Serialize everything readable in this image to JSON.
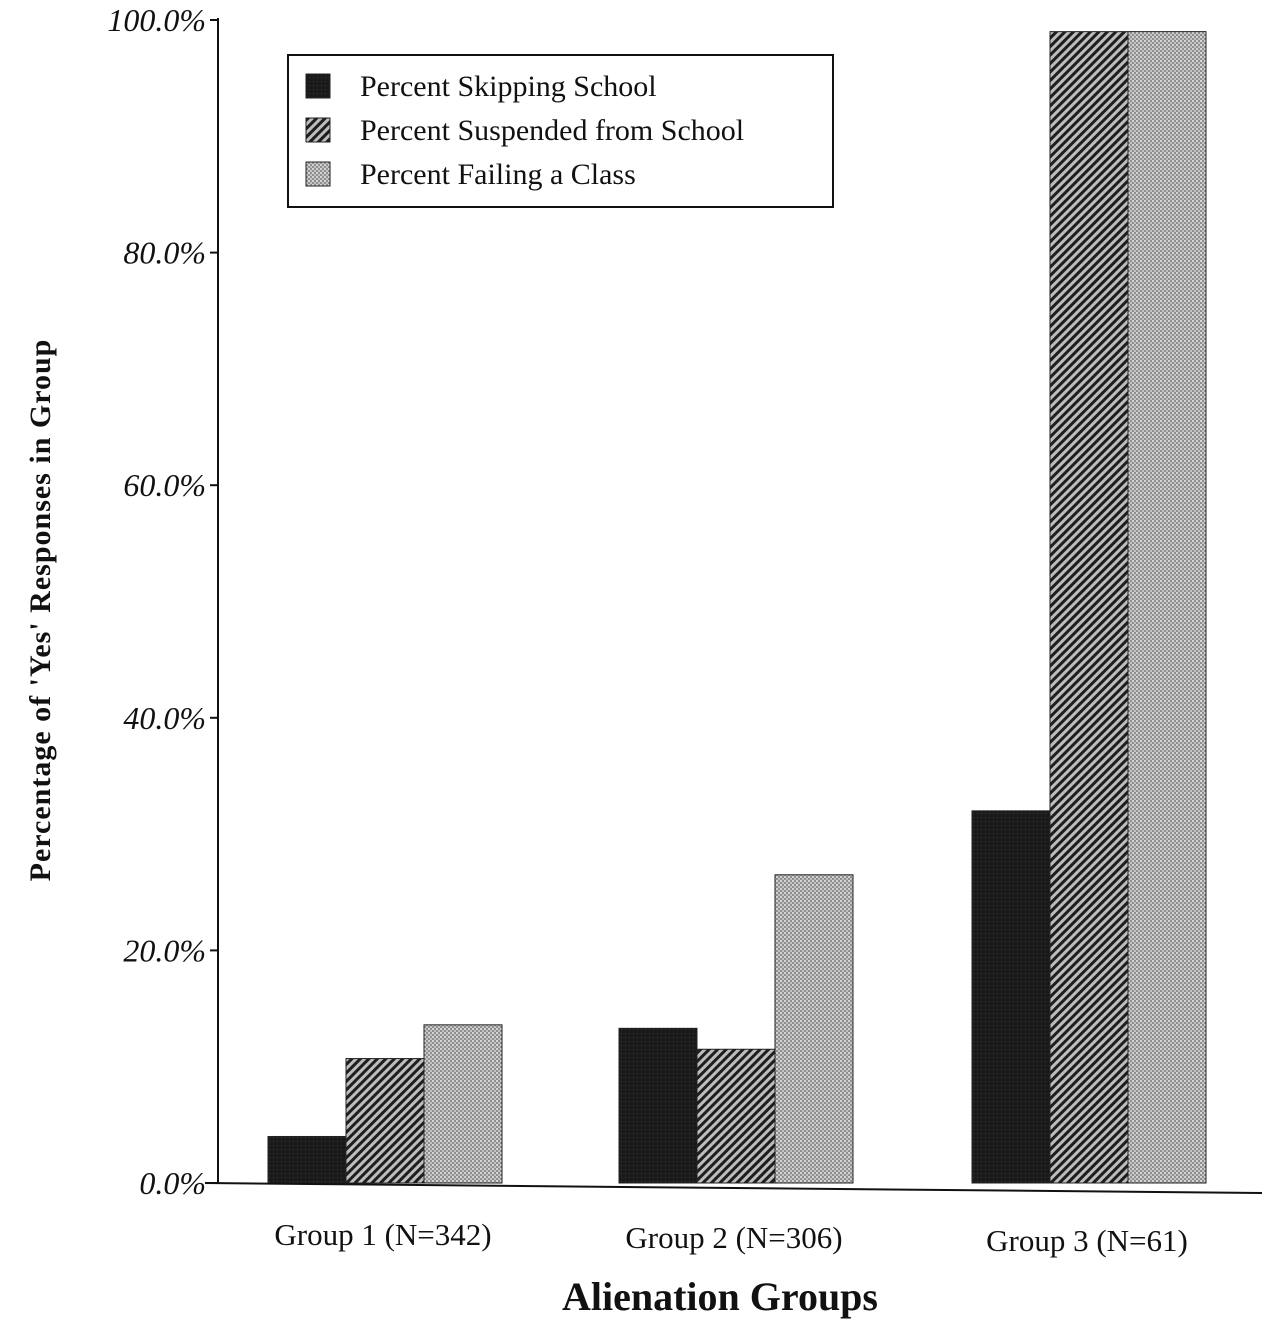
{
  "chart_data": {
    "type": "bar",
    "categories": [
      "Group 1 (N=342)",
      "Group 2 (N=306)",
      "Group 3 (N=61)"
    ],
    "series": [
      {
        "name": "Percent Skipping School",
        "values": [
          4.0,
          13.3,
          32.0
        ],
        "pattern": "solid-dark"
      },
      {
        "name": "Percent Suspended from School",
        "values": [
          10.7,
          11.5,
          99.0
        ],
        "pattern": "diagonal-hatch"
      },
      {
        "name": "Percent Failing a Class",
        "values": [
          13.6,
          26.5,
          99.0
        ],
        "pattern": "stipple-gray"
      }
    ],
    "xlabel": "Alienation Groups",
    "ylabel": "Percentage of 'Yes' Responses in Group",
    "ylim": [
      0,
      100
    ],
    "yticks": [
      0,
      20,
      40,
      60,
      80,
      100
    ],
    "ytick_labels": [
      "0.0%",
      "20.0%",
      "40.0%",
      "60.0%",
      "80.0%",
      "100.0%"
    ],
    "grid": false,
    "legend_position": "top-left",
    "colors": {
      "dark": "#1c1c1c",
      "hatch_bg": "#bdbdbd",
      "hatch_line": "#1e1e1e",
      "stipple_bg": "#9a9a9a",
      "stipple_dot": "#d8d8d8"
    }
  }
}
